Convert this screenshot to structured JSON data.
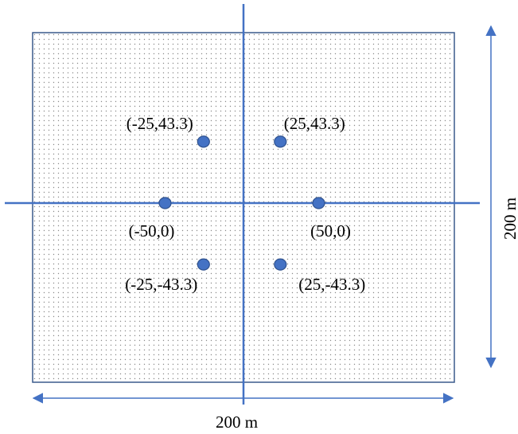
{
  "colors": {
    "line": "#4472c4",
    "point_fill": "#4472c4",
    "point_stroke": "#2f528f",
    "field_border": "#3a5a8c",
    "dot_pattern": "#8a8a8a",
    "text": "#000000"
  },
  "field": {
    "width_label": "200 m",
    "height_label": "200 m"
  },
  "points": [
    {
      "x": -25,
      "y": 43.3,
      "label": "(-25,43.3)"
    },
    {
      "x": 25,
      "y": 43.3,
      "label": "(25,43.3)"
    },
    {
      "x": -50,
      "y": 0,
      "label": "(-50,0)"
    },
    {
      "x": 50,
      "y": 0,
      "label": "(50,0)"
    },
    {
      "x": -25,
      "y": -43.3,
      "label": "(-25,-43.3)"
    },
    {
      "x": 25,
      "y": -43.3,
      "label": "(25,-43.3)"
    }
  ]
}
